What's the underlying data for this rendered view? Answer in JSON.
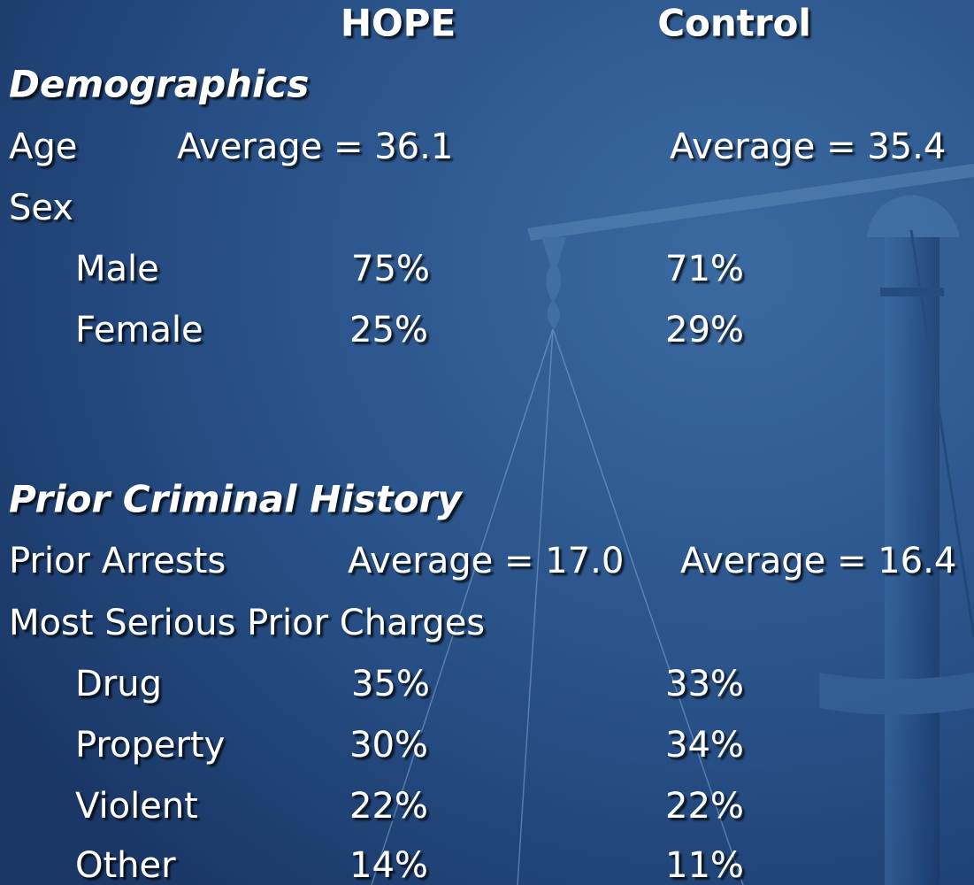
{
  "header": {
    "columns": [
      "HOPE",
      "Control"
    ]
  },
  "sections": [
    {
      "title": "Demographics",
      "rows": [
        {
          "label": "Age",
          "hope": "Average = 36.1",
          "control": "Average = 35.4"
        },
        {
          "label": "Sex"
        },
        {
          "label": "Male",
          "hope": "75%",
          "control": "71%"
        },
        {
          "label": "Female",
          "hope": "25%",
          "control": "29%"
        }
      ]
    },
    {
      "title": "Prior Criminal History",
      "rows": [
        {
          "label": "Prior Arrests",
          "hope": "Average = 17.0",
          "control": "Average = 16.4"
        },
        {
          "label": "Most Serious Prior Charges"
        },
        {
          "label": "Drug",
          "hope": "35%",
          "control": "33%"
        },
        {
          "label": "Property",
          "hope": "30%",
          "control": "34%"
        },
        {
          "label": "Violent",
          "hope": "22%",
          "control": "22%"
        },
        {
          "label": "Other",
          "hope": "14%",
          "control": "11%"
        }
      ]
    }
  ]
}
